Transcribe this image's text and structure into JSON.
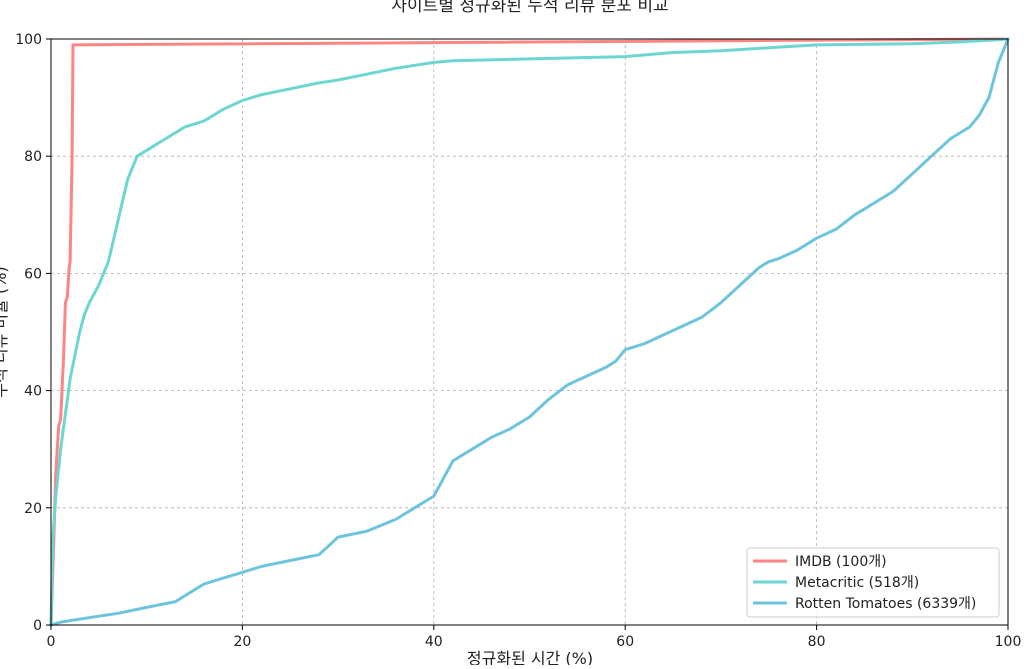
{
  "chart_data": {
    "type": "line",
    "title": "사이트별 정규화된 누적 리뷰 분포 비교",
    "xlabel": "정규화된 시간 (%)",
    "ylabel": "누적 리뷰 비율 (%)",
    "xlim": [
      0,
      100
    ],
    "ylim": [
      0,
      100
    ],
    "xticks": [
      "0",
      "20",
      "40",
      "60",
      "80",
      "100"
    ],
    "yticks": [
      "0",
      "20",
      "40",
      "60",
      "80",
      "100"
    ],
    "grid": true,
    "legend_position": "lower-right",
    "series": [
      {
        "name": "IMDB (100개)",
        "color": "#ff8484",
        "x": [
          0,
          0.3,
          0.5,
          0.8,
          1.0,
          1.3,
          1.5,
          1.7,
          1.9,
          2.0,
          2.2,
          2.3,
          100
        ],
        "y": [
          0,
          15,
          26,
          34,
          35,
          45,
          55,
          56,
          61,
          62,
          80,
          99,
          100
        ]
      },
      {
        "name": "Metacritic (518개)",
        "color": "#6dd6d0",
        "x": [
          0,
          0.2,
          0.5,
          1.0,
          1.5,
          2.0,
          2.5,
          3.0,
          3.5,
          4.0,
          5.0,
          6.0,
          7.0,
          8.0,
          8.5,
          9.0,
          10.0,
          12.0,
          14.0,
          16.0,
          18.0,
          20.0,
          22.0,
          25.0,
          28.0,
          30.0,
          33.0,
          36.0,
          38.0,
          40.0,
          42.0,
          50.0,
          60.0,
          65.0,
          70.0,
          75.0,
          80.0,
          90.0,
          95.0,
          98.0,
          100
        ],
        "y": [
          0,
          15,
          22,
          30,
          36,
          42,
          46,
          50,
          53,
          55,
          58,
          62,
          69,
          76,
          78,
          80,
          81,
          83,
          85,
          86,
          88,
          89.5,
          90.5,
          91.5,
          92.5,
          93,
          94,
          95,
          95.5,
          96,
          96.3,
          96.6,
          97,
          97.7,
          98,
          98.5,
          99,
          99.2,
          99.5,
          99.8,
          100
        ]
      },
      {
        "name": "Rotten Tomatoes (6339개)",
        "color": "#6ec4dd",
        "x": [
          0,
          1,
          3,
          5,
          7,
          10,
          13,
          15,
          16,
          18,
          20,
          22,
          25,
          28,
          30,
          33,
          36,
          38,
          40,
          41,
          42,
          44,
          46,
          48,
          50,
          52,
          54,
          56,
          58,
          59,
          60,
          62,
          64,
          66,
          68,
          70,
          72,
          74,
          75,
          76,
          78,
          80,
          82,
          84,
          86,
          88,
          90,
          92,
          94,
          96,
          97,
          98,
          99,
          100
        ],
        "y": [
          0,
          0.5,
          1,
          1.5,
          2,
          3,
          4,
          6,
          7,
          8,
          9,
          10,
          11,
          12,
          15,
          16,
          18,
          20,
          22,
          25,
          28,
          30,
          32,
          33.5,
          35.5,
          38.5,
          41,
          42.5,
          44,
          45,
          47,
          48,
          49.5,
          51,
          52.5,
          55,
          58,
          61,
          62,
          62.5,
          64,
          66,
          67.5,
          70,
          72,
          74,
          77,
          80,
          83,
          85,
          87,
          90,
          96,
          100
        ]
      }
    ]
  }
}
